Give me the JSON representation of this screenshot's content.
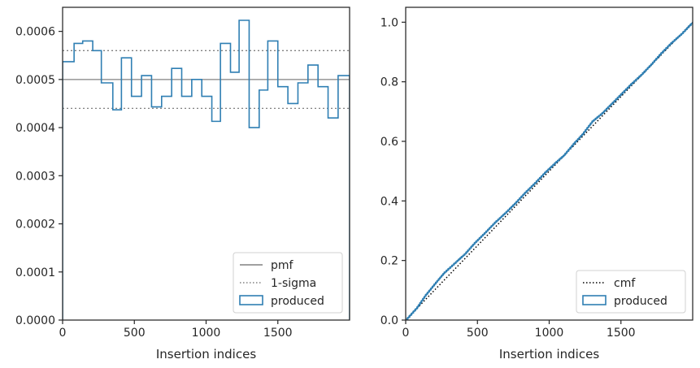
{
  "chart_data": [
    {
      "type": "step",
      "xlabel": "Insertion indices",
      "xlim": [
        0,
        2000
      ],
      "ylim": [
        0,
        0.00065
      ],
      "x_ticks": [
        0,
        500,
        1000,
        1500
      ],
      "x_tick_labels": [
        "0",
        "500",
        "1000",
        "1500"
      ],
      "y_ticks": [
        0,
        0.0001,
        0.0002,
        0.0003,
        0.0004,
        0.0005,
        0.0006
      ],
      "y_tick_labels": [
        "0.0000",
        "0.0001",
        "0.0002",
        "0.0003",
        "0.0004",
        "0.0005",
        "0.0006"
      ],
      "reference_lines": [
        {
          "label": "pmf",
          "y": 0.0005,
          "style": "solid",
          "color": "#808080"
        },
        {
          "label": "1-sigma",
          "y": 0.00056,
          "style": "dotted",
          "color": "#808080"
        },
        {
          "y": 0.00044,
          "style": "dotted",
          "color": "#808080"
        }
      ],
      "series": [
        {
          "name": "produced",
          "color": "#2f7fb3",
          "bin_edges": [
            0,
            80,
            140,
            210,
            270,
            350,
            410,
            480,
            550,
            620,
            690,
            760,
            830,
            900,
            970,
            1040,
            1100,
            1170,
            1230,
            1300,
            1370,
            1430,
            1500,
            1570,
            1640,
            1710,
            1780,
            1850,
            1920,
            2000
          ],
          "values": [
            0.000537,
            0.000575,
            0.00058,
            0.00056,
            0.000493,
            0.000437,
            0.000545,
            0.000465,
            0.000508,
            0.000443,
            0.000465,
            0.000523,
            0.000465,
            0.0005,
            0.000465,
            0.000413,
            0.000575,
            0.000515,
            0.000623,
            0.0004,
            0.000478,
            0.00058,
            0.000485,
            0.00045,
            0.000493,
            0.00053,
            0.000485,
            0.00042,
            0.000508
          ]
        }
      ],
      "legend": {
        "placement": "lower right",
        "entries": [
          "pmf",
          "1-sigma",
          "produced"
        ]
      },
      "grid": false
    },
    {
      "type": "line",
      "xlabel": "Insertion indices",
      "xlim": [
        0,
        2000
      ],
      "ylim": [
        0,
        1.05
      ],
      "x_ticks": [
        0,
        500,
        1000,
        1500
      ],
      "x_tick_labels": [
        "0",
        "500",
        "1000",
        "1500"
      ],
      "y_ticks": [
        0,
        0.2,
        0.4,
        0.6,
        0.8,
        1.0
      ],
      "y_tick_labels": [
        "0.0",
        "0.2",
        "0.4",
        "0.6",
        "0.8",
        "1.0"
      ],
      "series": [
        {
          "name": "cmf",
          "style": "dotted",
          "color": "#000000",
          "x": [
            0,
            2000
          ],
          "y": [
            0,
            1.0
          ]
        },
        {
          "name": "produced",
          "style": "step",
          "color": "#2f7fb3",
          "x": [
            0,
            80,
            140,
            210,
            270,
            350,
            410,
            480,
            550,
            620,
            690,
            760,
            830,
            900,
            970,
            1040,
            1100,
            1170,
            1230,
            1300,
            1370,
            1430,
            1500,
            1570,
            1640,
            1710,
            1780,
            1850,
            1920,
            2000
          ],
          "y": [
            0,
            0.043,
            0.085,
            0.126,
            0.16,
            0.195,
            0.221,
            0.259,
            0.292,
            0.327,
            0.358,
            0.391,
            0.427,
            0.46,
            0.495,
            0.527,
            0.552,
            0.592,
            0.623,
            0.667,
            0.695,
            0.724,
            0.758,
            0.792,
            0.823,
            0.858,
            0.896,
            0.93,
            0.96,
            1.0
          ]
        }
      ],
      "legend": {
        "placement": "lower right",
        "entries": [
          "cmf",
          "produced"
        ]
      },
      "grid": false
    }
  ]
}
